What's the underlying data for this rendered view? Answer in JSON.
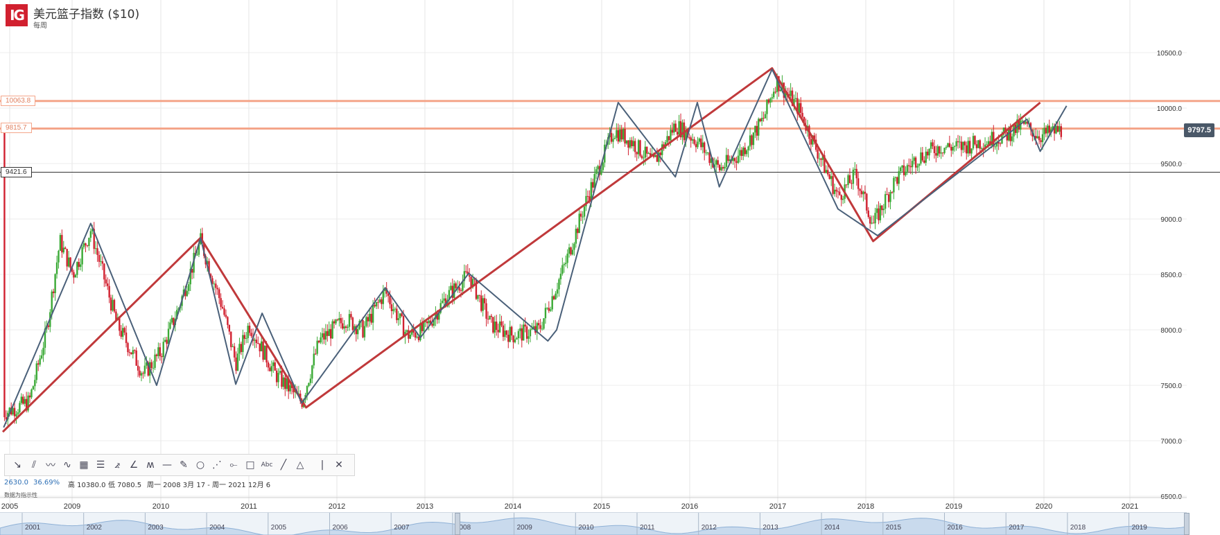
{
  "header": {
    "logo": "IG",
    "title": "美元篮子指数 ($10)",
    "subtitle": "每周"
  },
  "price_badge": "9797.5",
  "hlines": [
    {
      "label": "10063.8",
      "value": 10063.8,
      "color": "#f4a58a",
      "text_color": "#e08060"
    },
    {
      "label": "9815.7",
      "value": 9815.7,
      "color": "#f4a58a",
      "text_color": "#e08060"
    },
    {
      "label": "9421.6",
      "value": 9421.6,
      "color": "#333333",
      "text_color": "#333333"
    }
  ],
  "toolbar": {
    "tools": [
      {
        "name": "arrow-line-tool",
        "glyph": "↘"
      },
      {
        "name": "parallel-lines-tool",
        "glyph": "⫽"
      },
      {
        "name": "polyline-tool",
        "glyph": "〰"
      },
      {
        "name": "wave-tool",
        "glyph": "∿"
      },
      {
        "name": "grid-tool",
        "glyph": "▦"
      },
      {
        "name": "fib-retracement-tool",
        "glyph": "☰"
      },
      {
        "name": "gann-fan-tool",
        "glyph": "⦨"
      },
      {
        "name": "fan-tool",
        "glyph": "∠"
      },
      {
        "name": "elliott-wave-tool",
        "glyph": "ʍ"
      },
      {
        "name": "horizontal-line-tool",
        "glyph": "—"
      },
      {
        "name": "ruler-tool",
        "glyph": "✎"
      },
      {
        "name": "circle-tool",
        "glyph": "○"
      },
      {
        "name": "pitchfork-tool",
        "glyph": "⋰"
      },
      {
        "name": "connector-tool",
        "glyph": "⟜"
      },
      {
        "name": "rectangle-tool",
        "glyph": "□"
      },
      {
        "name": "text-tool",
        "glyph": "Abc"
      },
      {
        "name": "line-tool",
        "glyph": "╱"
      },
      {
        "name": "triangle-tool",
        "glyph": "△"
      },
      {
        "name": "vertical-line-tool",
        "glyph": "|"
      },
      {
        "name": "close-tool",
        "glyph": "✕"
      }
    ]
  },
  "info": {
    "change": "2630.0",
    "change_pct": "36.69%",
    "high": "高 10380.0",
    "low": "低 7080.5",
    "range": "周一 2008 3月 17 - 周一 2021 12月 6",
    "note": "数据为指示性"
  },
  "chart_data": {
    "type": "line",
    "ylim": [
      6400,
      10900
    ],
    "x_axis_ticks": [
      "2005",
      "2009",
      "2010",
      "2011",
      "2012",
      "2013",
      "2014",
      "2015",
      "2016",
      "2017",
      "2018",
      "2019",
      "2020",
      "2021"
    ],
    "y_axis_ticks": [
      "10500.0",
      "10000.0",
      "9500.0",
      "9000.0",
      "8500.0",
      "8000.0",
      "7500.0",
      "7000.0",
      "6500.0"
    ],
    "y_tick_values": [
      10500,
      10000,
      9500,
      9000,
      8500,
      8000,
      7500,
      7000,
      6500
    ],
    "candles": [
      {
        "x": 2008.21,
        "y": 7250
      },
      {
        "x": 2008.5,
        "y": 7350
      },
      {
        "x": 2008.7,
        "y": 8000
      },
      {
        "x": 2008.85,
        "y": 8800
      },
      {
        "x": 2009.0,
        "y": 8500
      },
      {
        "x": 2009.2,
        "y": 8900
      },
      {
        "x": 2009.5,
        "y": 8050
      },
      {
        "x": 2009.8,
        "y": 7600
      },
      {
        "x": 2010.0,
        "y": 7800
      },
      {
        "x": 2010.2,
        "y": 8200
      },
      {
        "x": 2010.45,
        "y": 8800
      },
      {
        "x": 2010.7,
        "y": 8200
      },
      {
        "x": 2010.85,
        "y": 7700
      },
      {
        "x": 2011.0,
        "y": 8050
      },
      {
        "x": 2011.3,
        "y": 7600
      },
      {
        "x": 2011.6,
        "y": 7350
      },
      {
        "x": 2011.8,
        "y": 7900
      },
      {
        "x": 2012.1,
        "y": 8100
      },
      {
        "x": 2012.3,
        "y": 8000
      },
      {
        "x": 2012.55,
        "y": 8350
      },
      {
        "x": 2012.8,
        "y": 7950
      },
      {
        "x": 2013.0,
        "y": 8000
      },
      {
        "x": 2013.25,
        "y": 8300
      },
      {
        "x": 2013.5,
        "y": 8500
      },
      {
        "x": 2013.75,
        "y": 8050
      },
      {
        "x": 2014.0,
        "y": 7950
      },
      {
        "x": 2014.3,
        "y": 8000
      },
      {
        "x": 2014.6,
        "y": 8600
      },
      {
        "x": 2014.85,
        "y": 9200
      },
      {
        "x": 2015.15,
        "y": 9800
      },
      {
        "x": 2015.35,
        "y": 9700
      },
      {
        "x": 2015.6,
        "y": 9500
      },
      {
        "x": 2015.85,
        "y": 9850
      },
      {
        "x": 2016.1,
        "y": 9700
      },
      {
        "x": 2016.35,
        "y": 9450
      },
      {
        "x": 2016.6,
        "y": 9600
      },
      {
        "x": 2016.85,
        "y": 9900
      },
      {
        "x": 2017.0,
        "y": 10250
      },
      {
        "x": 2017.25,
        "y": 10000
      },
      {
        "x": 2017.5,
        "y": 9550
      },
      {
        "x": 2017.7,
        "y": 9200
      },
      {
        "x": 2017.9,
        "y": 9400
      },
      {
        "x": 2018.1,
        "y": 8950
      },
      {
        "x": 2018.35,
        "y": 9350
      },
      {
        "x": 2018.6,
        "y": 9550
      },
      {
        "x": 2018.85,
        "y": 9650
      },
      {
        "x": 2019.1,
        "y": 9650
      },
      {
        "x": 2019.35,
        "y": 9700
      },
      {
        "x": 2019.6,
        "y": 9750
      },
      {
        "x": 2019.8,
        "y": 9850
      },
      {
        "x": 2020.0,
        "y": 9750
      },
      {
        "x": 2020.2,
        "y": 9797.5
      }
    ],
    "series": [
      {
        "color": "#c0393b",
        "points": [
          [
            2008.2,
            7080
          ],
          [
            2010.45,
            8830
          ],
          [
            2011.65,
            7300
          ],
          [
            2016.95,
            10360
          ],
          [
            2018.1,
            8800
          ],
          [
            2020.0,
            10050
          ]
        ]
      },
      {
        "color": "#4a6079",
        "points": [
          [
            2008.21,
            7120
          ],
          [
            2009.2,
            8960
          ],
          [
            2009.95,
            7500
          ],
          [
            2010.45,
            8830
          ],
          [
            2010.85,
            7510
          ],
          [
            2011.15,
            8150
          ],
          [
            2011.6,
            7340
          ],
          [
            2012.55,
            8380
          ],
          [
            2012.95,
            7930
          ],
          [
            2013.5,
            8510
          ],
          [
            2014.4,
            7900
          ],
          [
            2014.5,
            8000
          ],
          [
            2015.2,
            10050
          ],
          [
            2015.85,
            9380
          ],
          [
            2016.1,
            10050
          ],
          [
            2016.35,
            9290
          ],
          [
            2016.95,
            10350
          ],
          [
            2017.7,
            9090
          ],
          [
            2018.15,
            8850
          ],
          [
            2019.85,
            9900
          ],
          [
            2020.0,
            9610
          ],
          [
            2020.3,
            10020
          ]
        ]
      }
    ]
  }
}
